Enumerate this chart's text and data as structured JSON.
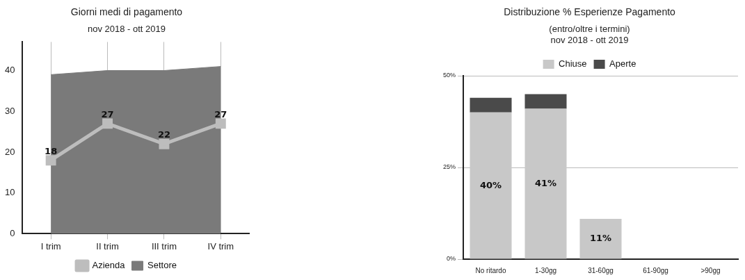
{
  "chart_data": [
    {
      "type": "line",
      "title": "Giorni medi di pagamento",
      "subtitle": "nov 2018 - ott 2019",
      "categories": [
        "I trim",
        "II trim",
        "III trim",
        "IV trim"
      ],
      "series": [
        {
          "name": "Settore",
          "type": "area",
          "color": "#7a7a7a",
          "values": [
            39,
            40,
            40,
            41
          ]
        },
        {
          "name": "Azienda",
          "type": "line",
          "color": "#bdbdbd",
          "values": [
            18,
            27,
            22,
            27
          ],
          "marker": "square",
          "value_labels": [
            "18",
            "27",
            "22",
            "27"
          ]
        }
      ],
      "ylim": [
        0,
        47
      ],
      "yticks": [
        0,
        10,
        20,
        30,
        40
      ],
      "grid": "x",
      "legend": "bottom"
    },
    {
      "type": "bar",
      "title": "Distribuzione % Esperienze Pagamento",
      "subtitle": "(entro/oltre i termini)\nnov 2018 - ott 2019",
      "categories": [
        "No ritardo",
        "1-30gg",
        "31-60gg",
        "61-90gg",
        ">90gg"
      ],
      "stacked": true,
      "series": [
        {
          "name": "Chiuse",
          "color": "#c8c8c8",
          "values": [
            40,
            41,
            11,
            0,
            0
          ],
          "value_labels": [
            "40%",
            "41%",
            "11%",
            null,
            null
          ]
        },
        {
          "name": "Aperte",
          "color": "#4a4a4a",
          "values": [
            4,
            4,
            0,
            0,
            0
          ]
        }
      ],
      "ylim": [
        0,
        50
      ],
      "yticks": [
        {
          "value": 0,
          "label": "0%"
        },
        {
          "value": 25,
          "label": "25%"
        },
        {
          "value": 50,
          "label": "50%"
        }
      ],
      "grid": "y",
      "legend": "top"
    }
  ]
}
